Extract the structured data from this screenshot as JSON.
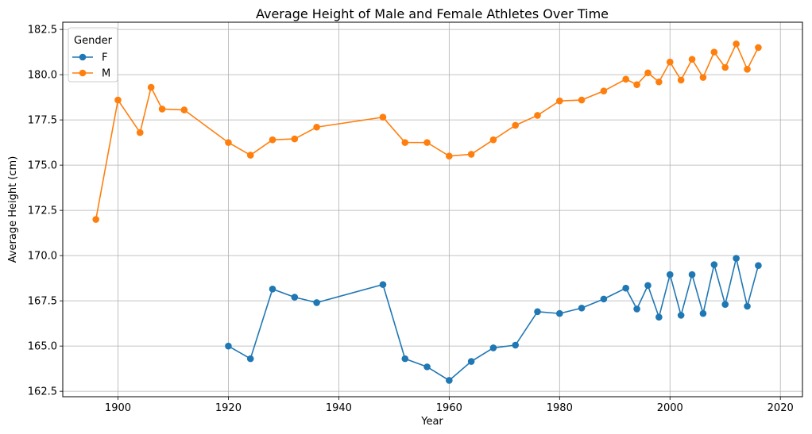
{
  "chart_data": {
    "type": "line",
    "title": "Average Height of Male and Female Athletes Over Time",
    "xlabel": "Year",
    "ylabel": "Average Height (cm)",
    "xlim": [
      1890,
      2024
    ],
    "ylim": [
      162.2,
      182.9
    ],
    "xticks": [
      "1900",
      "1920",
      "1940",
      "1960",
      "1980",
      "2000",
      "2020"
    ],
    "yticks": [
      "162.5",
      "165.0",
      "167.5",
      "170.0",
      "172.5",
      "175.0",
      "177.5",
      "180.0",
      "182.5"
    ],
    "grid": true,
    "legend": {
      "title": "Gender",
      "placement": "top-left"
    },
    "series": [
      {
        "name": "F",
        "color": "#1f77b4",
        "x": [
          1920,
          1924,
          1928,
          1932,
          1936,
          1948,
          1952,
          1956,
          1960,
          1964,
          1968,
          1972,
          1976,
          1980,
          1984,
          1988,
          1992,
          1994,
          1996,
          1998,
          2000,
          2002,
          2004,
          2006,
          2008,
          2010,
          2012,
          2014,
          2016
        ],
        "y": [
          165.0,
          164.3,
          168.15,
          167.7,
          167.4,
          168.4,
          164.3,
          163.85,
          163.1,
          164.15,
          164.9,
          165.05,
          166.9,
          166.8,
          167.1,
          167.6,
          168.2,
          167.05,
          168.35,
          166.6,
          168.95,
          166.7,
          168.95,
          166.8,
          169.5,
          167.3,
          169.85,
          167.2,
          169.45
        ]
      },
      {
        "name": "M",
        "color": "#ff7f0e",
        "x": [
          1896,
          1900,
          1904,
          1906,
          1908,
          1912,
          1920,
          1924,
          1928,
          1932,
          1936,
          1948,
          1952,
          1956,
          1960,
          1964,
          1968,
          1972,
          1976,
          1980,
          1984,
          1988,
          1992,
          1994,
          1996,
          1998,
          2000,
          2002,
          2004,
          2006,
          2008,
          2010,
          2012,
          2014,
          2016
        ],
        "y": [
          172.0,
          178.6,
          176.8,
          179.3,
          178.1,
          178.05,
          176.25,
          175.55,
          176.4,
          176.45,
          177.1,
          177.65,
          176.25,
          176.25,
          175.5,
          175.6,
          176.4,
          177.2,
          177.75,
          178.55,
          178.6,
          179.1,
          179.75,
          179.45,
          180.1,
          179.6,
          180.7,
          179.7,
          180.85,
          179.85,
          181.25,
          180.4,
          181.7,
          180.3,
          181.5
        ]
      }
    ]
  }
}
